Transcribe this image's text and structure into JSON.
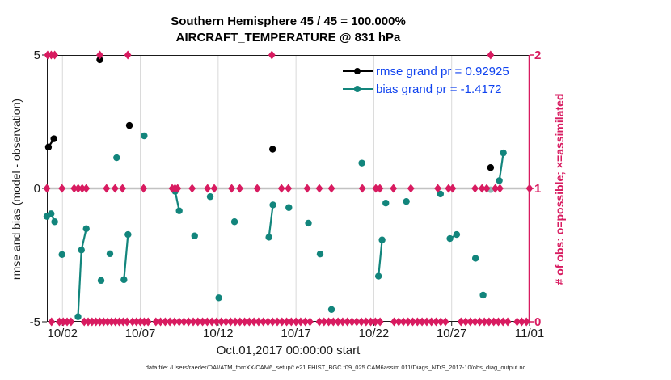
{
  "title_line1": "Southern Hemisphere 45 / 45 = 100.000%",
  "title_line2": "AIRCRAFT_TEMPERATURE @ 831 hPa",
  "axes": {
    "left_label": "rmse and bias (model - observation)",
    "right_label": "# of obs: o=possible; ×=assimilated",
    "x_label": "Oct.01,2017 00:00:00 start"
  },
  "legend": {
    "entries": [
      {
        "name": "rmse",
        "label": "rmse grand pr = 0.92925",
        "color": "#000000"
      },
      {
        "name": "bias",
        "label": "bias grand pr = -1.4172",
        "color": "#12857c"
      }
    ],
    "text_color": "#1043ef"
  },
  "footer": "data file: /Users/raeder/DAI/ATM_forcXX/CAM6_setup/f.e21.FHIST_BGC.f09_025.CAM6assim.011/Diags_NTrS_2017-10/obs_diag_output.nc",
  "colors": {
    "pink": "#d81b60",
    "teal": "#12857c",
    "teal_faded": "#8db9b5",
    "black": "#000000",
    "blue": "#1043ef",
    "grid": "#d9d9d9",
    "zero_line": "#c2c2c2",
    "axis": "#1a1a1a"
  },
  "chart_data": {
    "type": "line",
    "title": "Southern Hemisphere 45 / 45 = 100.000% | AIRCRAFT_TEMPERATURE @ 831 hPa",
    "x_axis": {
      "start_label": "Oct.01,2017 00:00:00 start",
      "days_span": 31,
      "tick_days": [
        1,
        6,
        11,
        16,
        21,
        26,
        31
      ],
      "tick_labels": [
        "10/02",
        "10/07",
        "10/12",
        "10/17",
        "10/22",
        "10/27",
        "11/01"
      ]
    },
    "ylim_left": [
      -5,
      5
    ],
    "left_tick_values": [
      5,
      0,
      -5
    ],
    "left_tick_labels": [
      "5",
      "0",
      "-5"
    ],
    "ylim_right": [
      0,
      2
    ],
    "right_tick_values": [
      2,
      1,
      0
    ],
    "right_tick_labels": [
      "2",
      "1",
      "0"
    ],
    "grid": "vertical-only",
    "legend_position": "top-right-inside",
    "series": [
      {
        "name": "bias",
        "color": "#12857c",
        "grand_value": -1.4172,
        "segments": [
          [
            [
              0.0,
              -1.05
            ],
            [
              0.27,
              -0.95
            ],
            [
              0.5,
              -1.25
            ]
          ],
          [
            [
              0.97,
              -2.48
            ]
          ],
          [
            [
              2.0,
              -4.81
            ],
            [
              2.22,
              -2.31
            ],
            [
              2.53,
              -1.51
            ]
          ],
          [
            [
              3.48,
              -3.45
            ]
          ],
          [
            [
              4.05,
              -2.45
            ]
          ],
          [
            [
              4.48,
              1.15
            ]
          ],
          [
            [
              4.95,
              -3.42
            ],
            [
              5.21,
              -1.73
            ]
          ],
          [
            [
              6.25,
              1.97
            ]
          ],
          [
            [
              8.24,
              -0.11
            ],
            [
              8.5,
              -0.84
            ]
          ],
          [
            [
              9.49,
              -1.78
            ]
          ],
          [
            [
              10.49,
              -0.31
            ]
          ],
          [
            [
              11.04,
              -4.1
            ]
          ],
          [
            [
              12.05,
              -1.25
            ]
          ],
          [
            [
              14.26,
              -1.83
            ],
            [
              14.52,
              -0.62
            ]
          ],
          [
            [
              15.54,
              -0.72
            ]
          ],
          [
            [
              16.8,
              -1.3
            ]
          ],
          [
            [
              17.55,
              -2.46
            ]
          ],
          [
            [
              18.28,
              -4.54
            ]
          ],
          [
            [
              20.23,
              0.95
            ]
          ],
          [
            [
              21.3,
              -3.29
            ],
            [
              21.53,
              -1.93
            ]
          ],
          [
            [
              21.77,
              -0.55
            ]
          ],
          [
            [
              23.09,
              -0.49
            ]
          ],
          [
            [
              25.28,
              -0.21
            ]
          ],
          [
            [
              25.89,
              -1.88
            ],
            [
              26.32,
              -1.73
            ]
          ],
          [
            [
              27.53,
              -2.62
            ]
          ],
          [
            [
              28.02,
              -4.0
            ]
          ],
          [
            [
              29.06,
              0.29
            ],
            [
              29.32,
              1.33
            ]
          ]
        ]
      },
      {
        "name": "rmse",
        "color": "#000000",
        "grand_value": 0.92925,
        "segments": [
          [
            [
              0.1,
              1.55
            ],
            [
              0.45,
              1.86
            ]
          ],
          [
            [
              3.4,
              4.82
            ]
          ],
          [
            [
              5.3,
              2.36
            ]
          ],
          [
            [
              14.5,
              1.47
            ]
          ],
          [
            [
              28.5,
              0.78
            ]
          ]
        ]
      }
    ],
    "faded_points": [
      [
        28.5,
        -0.05
      ]
    ],
    "obs_markers": {
      "axis": "right",
      "color": "#d81b60",
      "levels": {
        "2": [
          0.05,
          0.28,
          0.5,
          3.4,
          5.2,
          14.45,
          28.5
        ],
        "1": [
          0.0,
          0.97,
          1.75,
          2.01,
          2.27,
          2.53,
          3.83,
          4.38,
          4.86,
          6.21,
          8.05,
          8.23,
          8.4,
          9.33,
          10.32,
          10.75,
          11.87,
          12.39,
          13.51,
          15.07,
          15.51,
          16.72,
          17.5,
          18.28,
          20.26,
          21.13,
          21.39,
          22.26,
          23.38,
          25.11,
          25.8,
          26.06,
          27.5,
          27.95,
          28.25,
          28.8,
          29.1,
          31.0
        ],
        "0": [
          0.3,
          0.8,
          1.05,
          1.3,
          1.55,
          2.4,
          2.65,
          2.9,
          3.15,
          3.4,
          3.65,
          3.9,
          4.15,
          4.4,
          4.65,
          4.9,
          5.15,
          5.5,
          5.75,
          6.0,
          6.25,
          6.5,
          7.0,
          7.3,
          7.6,
          7.9,
          8.2,
          8.5,
          8.8,
          9.1,
          9.4,
          9.7,
          10.0,
          10.3,
          10.6,
          10.9,
          11.2,
          11.5,
          11.8,
          12.1,
          12.4,
          12.7,
          13.0,
          13.3,
          13.6,
          13.9,
          14.2,
          14.5,
          14.8,
          15.1,
          15.4,
          15.7,
          16.0,
          16.3,
          16.6,
          16.9,
          17.5,
          17.8,
          18.1,
          18.4,
          18.7,
          19.0,
          19.3,
          19.6,
          19.9,
          20.2,
          20.5,
          20.8,
          21.1,
          21.4,
          22.3,
          22.6,
          22.9,
          23.2,
          23.5,
          23.8,
          24.1,
          24.4,
          24.7,
          25.0,
          25.3,
          25.6,
          26.6,
          26.9,
          27.2,
          27.5,
          27.8,
          28.1,
          28.4,
          28.7,
          29.0,
          29.3,
          29.6,
          30.2,
          30.5,
          30.8
        ]
      }
    }
  }
}
